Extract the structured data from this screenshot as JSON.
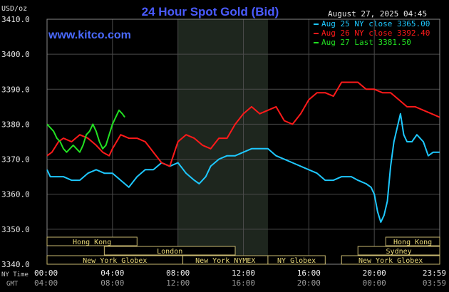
{
  "chart_data": {
    "type": "line",
    "title": "24 Hour Spot Gold (Bid)",
    "subtitle": "www.kitco.com",
    "date": "August 27, 2025 04:45",
    "ylabel": "USD/oz",
    "ylim": [
      3340,
      3410
    ],
    "yticks": [
      "3410.0",
      "3400.0",
      "3390.0",
      "3380.0",
      "3370.0",
      "3360.0",
      "3350.0",
      "3340.0"
    ],
    "xlim": [
      0,
      24
    ],
    "grid": true,
    "legend_position": "top-right",
    "x_axis_labels": {
      "ny_label": "NY Time",
      "gmt_label": "GMT",
      "ny": [
        "00:00",
        "04:00",
        "08:00",
        "12:00",
        "16:00",
        "20:00",
        "23:59"
      ],
      "gmt": [
        "04:00",
        "08:00",
        "12:00",
        "16:00",
        "20:00",
        "00:00",
        "03:59"
      ]
    },
    "nymex_shading": [
      8,
      13.5
    ],
    "series": [
      {
        "name": "Aug 25 NY close 3365.00",
        "color": "#1ec8ff",
        "x": [
          0,
          0.2,
          0.5,
          1,
          1.5,
          2,
          2.5,
          3,
          3.5,
          4,
          4.5,
          5,
          5.5,
          6,
          6.5,
          7,
          7.5,
          8,
          8.5,
          9,
          9.3,
          9.7,
          10,
          10.5,
          11,
          11.5,
          12,
          12.5,
          13,
          13.5,
          14,
          14.5,
          15,
          15.5,
          16,
          16.5,
          17,
          17.5,
          18,
          18.3,
          18.6,
          19,
          19.5,
          19.8,
          20,
          20.2,
          20.4,
          20.6,
          20.8,
          21,
          21.2,
          21.4,
          21.6,
          21.8,
          22,
          22.3,
          22.6,
          23,
          23.3,
          23.6,
          23.99
        ],
        "y": [
          3367,
          3365,
          3365,
          3365,
          3364,
          3364,
          3366,
          3367,
          3366,
          3366,
          3364,
          3362,
          3365,
          3367,
          3367,
          3369,
          3368,
          3369,
          3366,
          3364,
          3363,
          3365,
          3368,
          3370,
          3371,
          3371,
          3372,
          3373,
          3373,
          3373,
          3371,
          3370,
          3369,
          3368,
          3367,
          3366,
          3364,
          3364,
          3365,
          3365,
          3365,
          3364,
          3363,
          3362,
          3360,
          3355,
          3352,
          3354,
          3358,
          3368,
          3375,
          3379,
          3383,
          3377,
          3375,
          3375,
          3377,
          3375,
          3371,
          3372,
          3372
        ]
      },
      {
        "name": "Aug 26 NY close 3392.40",
        "color": "#ff1a1a",
        "x": [
          0,
          0.3,
          0.7,
          1,
          1.5,
          2,
          2.5,
          3,
          3.4,
          3.8,
          4,
          4.5,
          5,
          5.5,
          6,
          6.5,
          7,
          7.5,
          8,
          8.5,
          9,
          9.5,
          10,
          10.5,
          11,
          11.5,
          12,
          12.5,
          13,
          13.5,
          14,
          14.5,
          15,
          15.5,
          16,
          16.5,
          17,
          17.5,
          18,
          18.5,
          19,
          19.5,
          20,
          20.5,
          21,
          21.5,
          22,
          22.5,
          23,
          23.5,
          23.99
        ],
        "y": [
          3371,
          3372,
          3375,
          3376,
          3375,
          3377,
          3376,
          3374,
          3372,
          3371,
          3373,
          3377,
          3376,
          3376,
          3375,
          3372,
          3369,
          3368,
          3375,
          3377,
          3376,
          3374,
          3373,
          3376,
          3376,
          3380,
          3383,
          3385,
          3383,
          3384,
          3385,
          3381,
          3380,
          3383,
          3387,
          3389,
          3389,
          3388,
          3392,
          3392,
          3392,
          3390,
          3390,
          3389,
          3389,
          3387,
          3385,
          3385,
          3384,
          3383,
          3382
        ]
      },
      {
        "name": "Aug 27 Last 3381.50",
        "color": "#22e022",
        "x": [
          0,
          0.2,
          0.4,
          0.6,
          0.8,
          1,
          1.2,
          1.4,
          1.6,
          1.8,
          2,
          2.2,
          2.4,
          2.6,
          2.8,
          3,
          3.2,
          3.4,
          3.6,
          3.8,
          4,
          4.2,
          4.4,
          4.6,
          4.75
        ],
        "y": [
          3380,
          3379,
          3378,
          3376,
          3375,
          3373,
          3372,
          3373,
          3374,
          3373,
          3372,
          3374,
          3377,
          3378,
          3380,
          3378,
          3375,
          3373,
          3374,
          3377,
          3380,
          3382,
          3384,
          3383,
          3382
        ]
      }
    ],
    "sessions": [
      {
        "label": "Hong Kong",
        "start": 0,
        "end": 5.5,
        "row": 0
      },
      {
        "label": "London",
        "start": 3.5,
        "end": 11.5,
        "row": 1
      },
      {
        "label": "New York Globex",
        "start": 0,
        "end": 8.3,
        "row": 2
      },
      {
        "label": "New York NYMEX",
        "start": 8.3,
        "end": 13.5,
        "row": 2
      },
      {
        "label": "NY Globex",
        "start": 13.5,
        "end": 17,
        "row": 2
      },
      {
        "label": "Hong Kong",
        "start": 20.7,
        "end": 24,
        "row": 0
      },
      {
        "label": "Sydney",
        "start": 19,
        "end": 24,
        "row": 1
      },
      {
        "label": "New York Globex",
        "start": 18,
        "end": 24,
        "row": 2
      }
    ]
  }
}
